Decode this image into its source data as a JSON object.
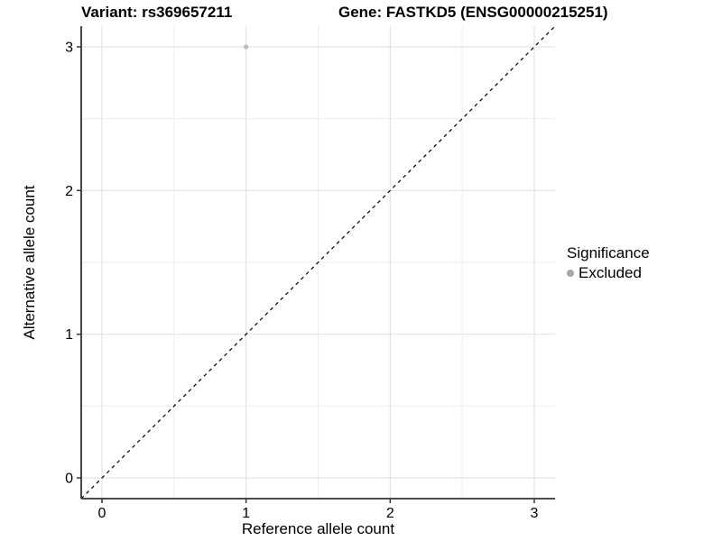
{
  "chart_data": {
    "type": "scatter",
    "title_left": "Variant: rs369657211",
    "title_right": "Gene: FASTKD5 (ENSG00000215251)",
    "xlabel": "Reference allele count",
    "ylabel": "Alternative allele count",
    "xlim": [
      -0.144,
      3.144
    ],
    "ylim": [
      -0.144,
      3.144
    ],
    "xticks": [
      0,
      1,
      2,
      3
    ],
    "yticks": [
      0,
      1,
      2,
      3
    ],
    "x_minor_ticks": [
      0.5,
      1.5,
      2.5
    ],
    "y_minor_ticks": [
      0.5,
      1.5,
      2.5
    ],
    "grid": true,
    "points": [
      {
        "x": 1,
        "y": 3,
        "series": "Excluded"
      }
    ],
    "identity_line": {
      "slope": 1,
      "intercept": 0,
      "style": "dashed"
    },
    "legend": {
      "title": "Significance",
      "position": "right",
      "entries": [
        {
          "label": "Excluded",
          "color": "#a6a6a6"
        }
      ]
    },
    "colors": {
      "point": "#bdbdbd",
      "grid_major": "#e2e2e2",
      "grid_minor": "#eeeeee",
      "axis": "#333333",
      "identity_line": "#000000",
      "text": "#000000",
      "background": "#ffffff"
    }
  }
}
